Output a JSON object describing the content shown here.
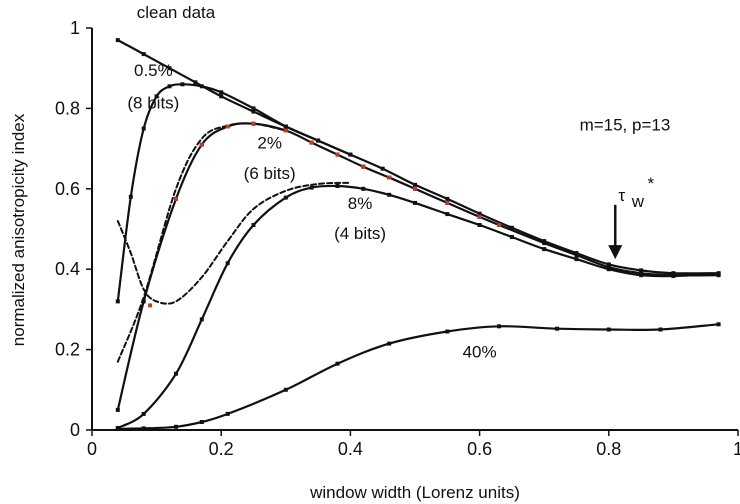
{
  "chart_data": {
    "type": "line",
    "title": "",
    "xlabel": "window width (Lorenz units)",
    "ylabel": "normalized anisotropicity index",
    "xlim": [
      0,
      1
    ],
    "ylim": [
      0,
      1
    ],
    "xticks": [
      "0",
      "0.2",
      "0.4",
      "0.6",
      "0.8",
      "1"
    ],
    "yticks": [
      "0",
      "0.2",
      "0.4",
      "0.6",
      "0.8",
      "1"
    ],
    "grid": false,
    "series": [
      {
        "name": "clean data",
        "style": "solid",
        "color": "#111111",
        "markers": true,
        "x": [
          0.04,
          0.08,
          0.12,
          0.16,
          0.2,
          0.25,
          0.3,
          0.35,
          0.4,
          0.45,
          0.5,
          0.55,
          0.6,
          0.65,
          0.7,
          0.75,
          0.8,
          0.85,
          0.9,
          0.97
        ],
        "y": [
          0.97,
          0.935,
          0.9,
          0.865,
          0.83,
          0.792,
          0.755,
          0.72,
          0.685,
          0.65,
          0.61,
          0.575,
          0.538,
          0.503,
          0.47,
          0.44,
          0.412,
          0.397,
          0.39,
          0.39
        ]
      },
      {
        "name": "0.5%",
        "style": "solid",
        "color": "#111111",
        "markers": true,
        "x": [
          0.04,
          0.06,
          0.08,
          0.1,
          0.12,
          0.14,
          0.17,
          0.2,
          0.25,
          0.3,
          0.35,
          0.4
        ],
        "y": [
          0.32,
          0.58,
          0.75,
          0.83,
          0.855,
          0.86,
          0.855,
          0.84,
          0.8,
          0.755,
          0.72,
          0.685
        ]
      },
      {
        "name": "2%",
        "style": "solid",
        "color": "#111111",
        "markers": true,
        "x": [
          0.04,
          0.08,
          0.13,
          0.17,
          0.21,
          0.25,
          0.3,
          0.34,
          0.38,
          0.42,
          0.46,
          0.5,
          0.55,
          0.6,
          0.63,
          0.7,
          0.75,
          0.8,
          0.85,
          0.9,
          0.97
        ],
        "y": [
          0.05,
          0.32,
          0.575,
          0.71,
          0.755,
          0.762,
          0.745,
          0.715,
          0.685,
          0.655,
          0.628,
          0.6,
          0.565,
          0.53,
          0.51,
          0.465,
          0.435,
          0.405,
          0.39,
          0.385,
          0.385
        ]
      },
      {
        "name": "2% (dashed)",
        "style": "dashed",
        "color": "#111111",
        "markers": false,
        "x": [
          0.04,
          0.08,
          0.13,
          0.17,
          0.21,
          0.25,
          0.3
        ],
        "y": [
          0.17,
          0.33,
          0.6,
          0.725,
          0.757,
          0.762,
          0.745
        ]
      },
      {
        "name": "8%",
        "style": "solid",
        "color": "#111111",
        "markers": true,
        "x": [
          0.04,
          0.08,
          0.13,
          0.17,
          0.21,
          0.25,
          0.3,
          0.34,
          0.38,
          0.42,
          0.46,
          0.5,
          0.55,
          0.6,
          0.65,
          0.7,
          0.75,
          0.8,
          0.85,
          0.9,
          0.97
        ],
        "y": [
          0.005,
          0.04,
          0.14,
          0.275,
          0.415,
          0.51,
          0.578,
          0.603,
          0.607,
          0.6,
          0.585,
          0.565,
          0.537,
          0.51,
          0.48,
          0.45,
          0.425,
          0.4,
          0.385,
          0.383,
          0.388
        ]
      },
      {
        "name": "8% (dashed)",
        "style": "dashed",
        "color": "#111111",
        "markers": false,
        "x": [
          0.04,
          0.06,
          0.08,
          0.1,
          0.13,
          0.17,
          0.21,
          0.25,
          0.3,
          0.35,
          0.4
        ],
        "y": [
          0.52,
          0.44,
          0.35,
          0.32,
          0.32,
          0.38,
          0.47,
          0.55,
          0.595,
          0.612,
          0.615
        ]
      },
      {
        "name": "40%",
        "style": "solid",
        "color": "#111111",
        "markers": true,
        "x": [
          0.04,
          0.08,
          0.13,
          0.17,
          0.21,
          0.3,
          0.38,
          0.46,
          0.55,
          0.63,
          0.72,
          0.8,
          0.88,
          0.97
        ],
        "y": [
          0.003,
          0.004,
          0.008,
          0.02,
          0.04,
          0.1,
          0.165,
          0.215,
          0.245,
          0.258,
          0.252,
          0.25,
          0.25,
          0.263
        ]
      }
    ],
    "red_markers": {
      "x": [
        0.09,
        0.13,
        0.17,
        0.21,
        0.25,
        0.3,
        0.34,
        0.38,
        0.42,
        0.46,
        0.5,
        0.55,
        0.6,
        0.63
      ],
      "y": [
        0.31,
        0.575,
        0.71,
        0.755,
        0.762,
        0.745,
        0.715,
        0.685,
        0.655,
        0.628,
        0.6,
        0.565,
        0.53,
        0.51
      ]
    },
    "annotations": {
      "clean": {
        "text": "clean data",
        "x": 0.13,
        "y": 1.025
      },
      "p05": {
        "text": "0.5%",
        "x": 0.095,
        "y": 0.88
      },
      "p05b": {
        "text": "(8 bits)",
        "x": 0.095,
        "y": 0.8
      },
      "p2": {
        "text": "2%",
        "x": 0.275,
        "y": 0.7
      },
      "p2b": {
        "text": "(6 bits)",
        "x": 0.275,
        "y": 0.625
      },
      "p8": {
        "text": "8%",
        "x": 0.415,
        "y": 0.55
      },
      "p8b": {
        "text": "(4 bits)",
        "x": 0.415,
        "y": 0.475
      },
      "p40": {
        "text": "40%",
        "x": 0.6,
        "y": 0.18
      },
      "params": {
        "text": "m=15, p=13",
        "x": 0.825,
        "y": 0.745
      },
      "tau_main": {
        "text": "τ",
        "x": 0.82,
        "y": 0.57
      },
      "tau_sub": {
        "text": "w",
        "x": 0.845,
        "y": 0.555
      },
      "tau_sup": {
        "text": "*",
        "x": 0.865,
        "y": 0.6
      }
    },
    "arrow": {
      "x": 0.81,
      "y_start": 0.56,
      "y_end": 0.425
    }
  }
}
